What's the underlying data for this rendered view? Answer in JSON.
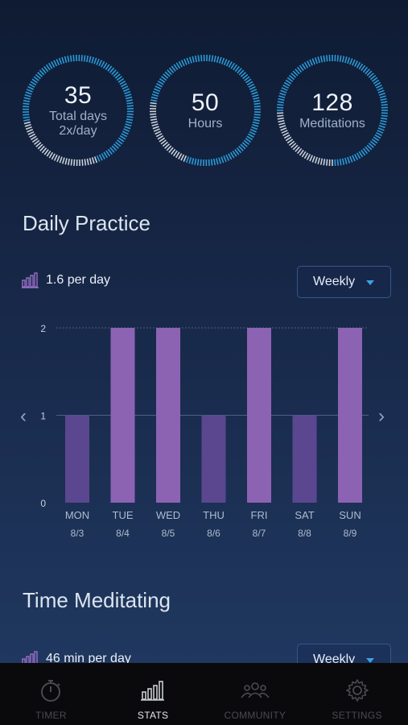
{
  "stats": [
    {
      "value": "35",
      "label": "Total days",
      "label2": "2x/day",
      "progress": 0.72
    },
    {
      "value": "50",
      "label": "Hours",
      "label2": "",
      "progress": 0.78
    },
    {
      "value": "128",
      "label": "Meditations",
      "label2": "",
      "progress": 0.75
    }
  ],
  "daily": {
    "title": "Daily Practice",
    "summary": "1.6 per day",
    "dropdown": "Weekly"
  },
  "time": {
    "title": "Time Meditating",
    "summary": "46 min per day",
    "dropdown": "Weekly"
  },
  "nav": {
    "prev": "‹",
    "next": "›"
  },
  "colors": {
    "ring_active": "#2a9bd8",
    "ring_inactive": "#c9d1db",
    "bar_high": "#8c63b3",
    "bar_low": "#5a478f",
    "accent": "#3aa3e3"
  },
  "chart_data": {
    "type": "bar",
    "categories": [
      "MON",
      "TUE",
      "WED",
      "THU",
      "FRI",
      "SAT",
      "SUN"
    ],
    "dates": [
      "8/3",
      "8/4",
      "8/5",
      "8/6",
      "8/7",
      "8/8",
      "8/9"
    ],
    "values": [
      1,
      2,
      2,
      1,
      2,
      1,
      2
    ],
    "yticks": [
      "0",
      "1",
      "2"
    ],
    "ylim": [
      0,
      2
    ],
    "grid": true
  },
  "tabs": [
    {
      "label": "TIMER",
      "icon": "stopwatch-icon",
      "active": false
    },
    {
      "label": "STATS",
      "icon": "bar-chart-icon",
      "active": true
    },
    {
      "label": "COMMUNITY",
      "icon": "community-icon",
      "active": false
    },
    {
      "label": "SETTINGS",
      "icon": "gear-icon",
      "active": false
    }
  ]
}
